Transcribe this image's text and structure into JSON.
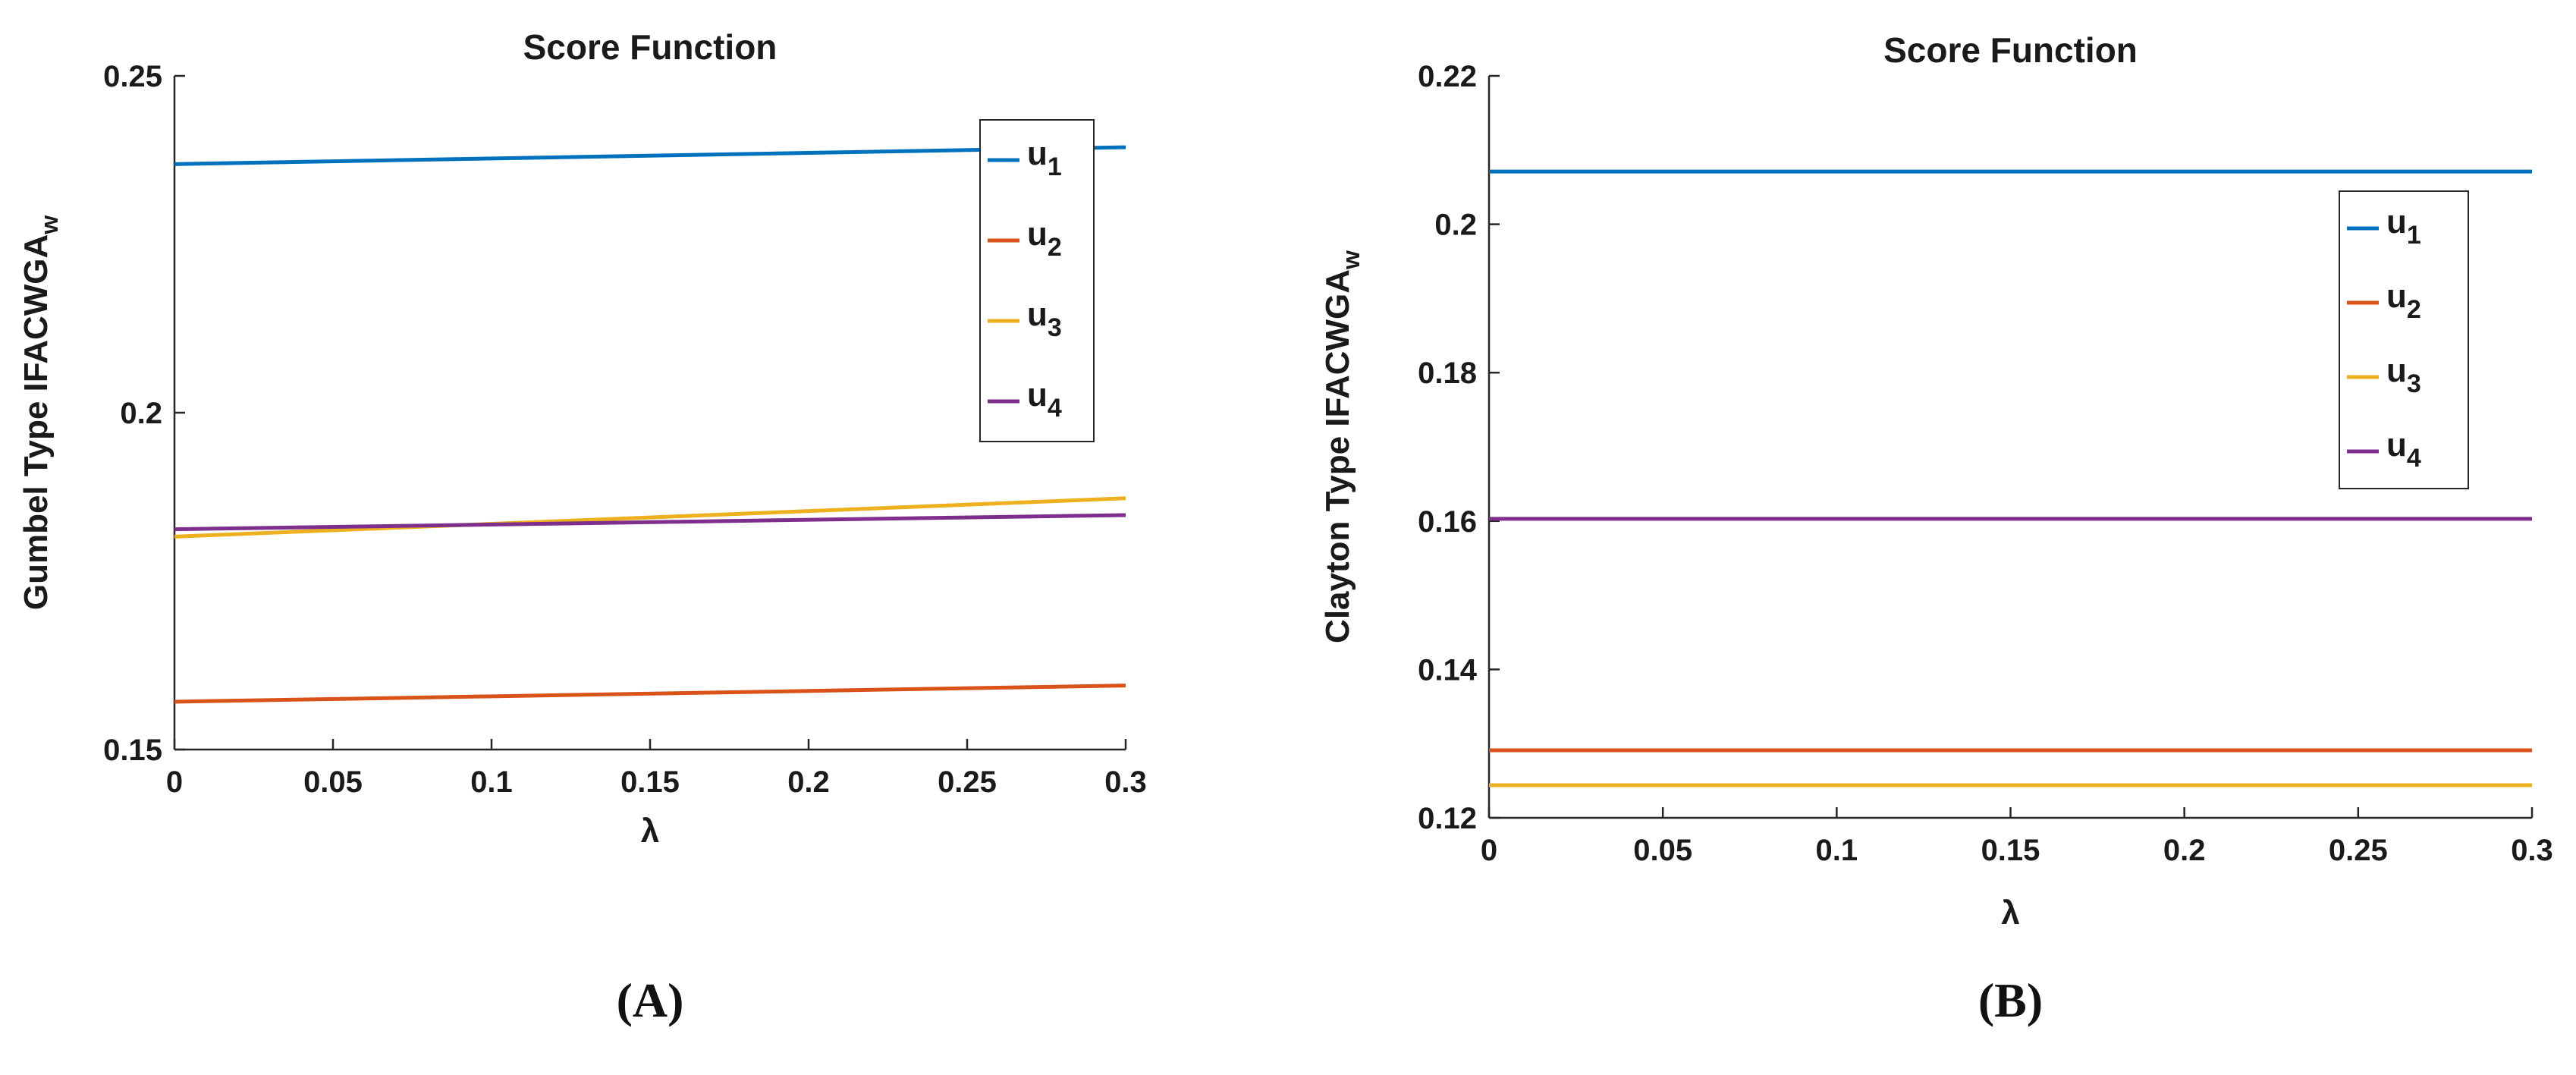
{
  "chart_data": [
    {
      "type": "line",
      "panel_label": "(A)",
      "title": "Score Function",
      "xlabel": "λ",
      "ylabel_main": "Gumbel Type IFACWGA",
      "ylabel_sub": "w",
      "xlim": [
        0,
        0.3
      ],
      "ylim": [
        0.15,
        0.25
      ],
      "xticks": [
        0,
        0.05,
        0.1,
        0.15,
        0.2,
        0.25,
        0.3
      ],
      "xtick_labels": [
        "0",
        "0.05",
        "0.1",
        "0.15",
        "0.2",
        "0.25",
        "0.3"
      ],
      "yticks": [
        0.15,
        0.2,
        0.25
      ],
      "ytick_labels": [
        "0.15",
        "0.2",
        "0.25"
      ],
      "legend_position": "top-right",
      "x": [
        0,
        0.3
      ],
      "series": [
        {
          "name": "u",
          "sub": "1",
          "color": "#0072BD",
          "values": [
            0.2369,
            0.2394
          ]
        },
        {
          "name": "u",
          "sub": "2",
          "color": "#D95319",
          "values": [
            0.1571,
            0.1595
          ]
        },
        {
          "name": "u",
          "sub": "3",
          "color": "#EDB120",
          "values": [
            0.1816,
            0.1873
          ]
        },
        {
          "name": "u",
          "sub": "4",
          "color": "#7E2F8E",
          "values": [
            0.1827,
            0.1848
          ]
        }
      ]
    },
    {
      "type": "line",
      "panel_label": "(B)",
      "title": "Score Function",
      "xlabel": "λ",
      "ylabel_main": "Clayton Type IFACWGA",
      "ylabel_sub": "w",
      "xlim": [
        0,
        0.3
      ],
      "ylim": [
        0.12,
        0.22
      ],
      "xticks": [
        0,
        0.05,
        0.1,
        0.15,
        0.2,
        0.25,
        0.3
      ],
      "xtick_labels": [
        "0",
        "0.05",
        "0.1",
        "0.15",
        "0.2",
        "0.25",
        "0.3"
      ],
      "yticks": [
        0.12,
        0.14,
        0.16,
        0.18,
        0.2,
        0.22
      ],
      "ytick_labels": [
        "0.12",
        "0.14",
        "0.16",
        "0.18",
        "0.2",
        "0.22"
      ],
      "legend_position": "top-right",
      "x": [
        0,
        0.3
      ],
      "series": [
        {
          "name": "u",
          "sub": "1",
          "color": "#0072BD",
          "values": [
            0.2071,
            0.2071
          ]
        },
        {
          "name": "u",
          "sub": "2",
          "color": "#D95319",
          "values": [
            0.1291,
            0.1291
          ]
        },
        {
          "name": "u",
          "sub": "3",
          "color": "#EDB120",
          "values": [
            0.1244,
            0.1244
          ]
        },
        {
          "name": "u",
          "sub": "4",
          "color": "#7E2F8E",
          "values": [
            0.1603,
            0.1603
          ]
        }
      ]
    }
  ]
}
